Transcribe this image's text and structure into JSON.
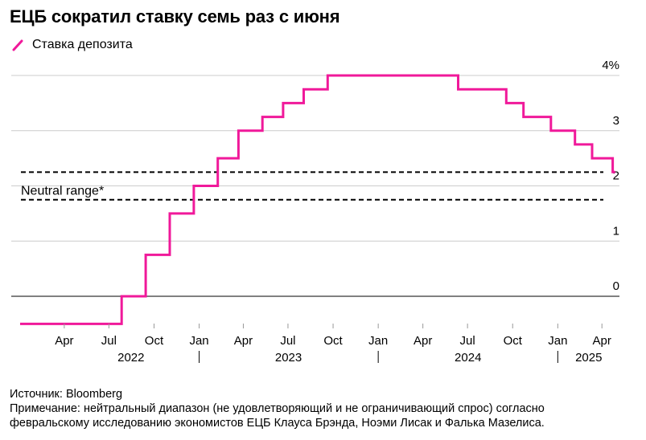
{
  "title": "ЕЦБ сократил ставку семь раз с июня",
  "legend": {
    "label": "Ставка депозита",
    "color": "#f0199a"
  },
  "source": "Источник: Bloomberg",
  "note_line1": "Примечание: нейтральный диапазон (не удовлетворяющий и не ограничивающий спрос) согласно",
  "note_line2": "февральскому исследованию экономистов ЕЦБ Клауса Брэнда, Ноэми Лисак и Фалька Мазелиса.",
  "chart_data": {
    "type": "line",
    "step": true,
    "series": [
      {
        "name": "Ставка депозита",
        "color": "#f0199a",
        "x": [
          "2022-01-01",
          "2022-07-27",
          "2022-09-14",
          "2022-11-02",
          "2022-12-21",
          "2023-02-08",
          "2023-03-22",
          "2023-05-10",
          "2023-06-21",
          "2023-08-02",
          "2023-09-20",
          "2024-06-12",
          "2024-09-18",
          "2024-10-23",
          "2024-12-18",
          "2025-02-05",
          "2025-03-12",
          "2025-04-23",
          "2025-04-28"
        ],
        "values": [
          -0.5,
          0,
          0.75,
          1.5,
          2.0,
          2.5,
          3.0,
          3.25,
          3.5,
          3.75,
          4.0,
          3.75,
          3.5,
          3.25,
          3.0,
          2.75,
          2.5,
          2.25,
          2.25
        ]
      }
    ],
    "reference_lines": [
      {
        "label": "Neutral range*",
        "values": [
          1.75,
          2.25
        ]
      }
    ],
    "yticks": [
      "0",
      "1",
      "2",
      "3",
      "4%"
    ],
    "ytick_values": [
      0,
      1,
      2,
      3,
      4
    ],
    "ylim": [
      -0.5,
      4.25
    ],
    "x_start": "2022-01-01",
    "x_end": "2025-05-10",
    "xticks": [
      "Apr",
      "Jul",
      "Oct",
      "Jan",
      "Apr",
      "Jul",
      "Oct",
      "Jan",
      "Apr",
      "Jul",
      "Oct",
      "Jan",
      "Apr"
    ],
    "xtick_dates": [
      "2022-04-01",
      "2022-07-01",
      "2022-10-01",
      "2023-01-01",
      "2023-04-01",
      "2023-07-01",
      "2023-10-01",
      "2024-01-01",
      "2024-04-01",
      "2024-07-01",
      "2024-10-01",
      "2025-01-01",
      "2025-04-01"
    ],
    "years": [
      "2022",
      "2023",
      "2024",
      "2025"
    ],
    "year_dates": [
      "2022-08-15",
      "2023-07-02",
      "2024-07-02",
      "2025-03-05"
    ],
    "year_separators": [
      "2023-01-01",
      "2024-01-01",
      "2025-01-01"
    ],
    "grid": true
  }
}
